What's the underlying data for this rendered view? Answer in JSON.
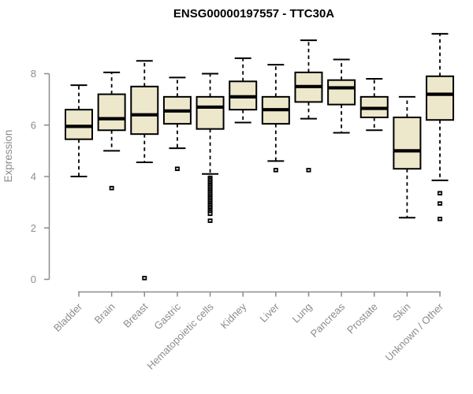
{
  "chart_data": {
    "type": "boxplot",
    "title": "ENSG00000197557 - TTC30A",
    "xlabel": "",
    "ylabel": "Expression",
    "ylim": [
      0,
      9.8
    ],
    "yticks": [
      0,
      2,
      4,
      6,
      8
    ],
    "grid": false,
    "legend": "none",
    "colors": {
      "box_fill": "#EDE7CB",
      "box_stroke": "#000000",
      "median": "#000000",
      "outlier": "#000000",
      "axis": "#8C8C8C",
      "tick_label": "#8C8C8C",
      "title": "#000000",
      "background": "#FFFFFF"
    },
    "categories": [
      "Bladder",
      "Brain",
      "Breast",
      "Gastric",
      "Hematopoietic cells",
      "Kidney",
      "Liver",
      "Lung",
      "Pancreas",
      "Prostate",
      "Skin",
      "Unknown / Other"
    ],
    "boxes": [
      {
        "category": "Bladder",
        "whisker_low": 4.0,
        "q1": 5.45,
        "median": 5.95,
        "q3": 6.6,
        "whisker_high": 7.55,
        "outliers": []
      },
      {
        "category": "Brain",
        "whisker_low": 5.0,
        "q1": 5.8,
        "median": 6.25,
        "q3": 7.2,
        "whisker_high": 8.05,
        "outliers": [
          3.55
        ]
      },
      {
        "category": "Breast",
        "whisker_low": 4.55,
        "q1": 5.65,
        "median": 6.4,
        "q3": 7.5,
        "whisker_high": 8.5,
        "outliers": [
          0.05
        ]
      },
      {
        "category": "Gastric",
        "whisker_low": 5.1,
        "q1": 6.05,
        "median": 6.55,
        "q3": 7.1,
        "whisker_high": 7.85,
        "outliers": [
          4.3
        ]
      },
      {
        "category": "Hematopoietic cells",
        "whisker_low": 4.1,
        "q1": 5.85,
        "median": 6.7,
        "q3": 7.1,
        "whisker_high": 8.0,
        "outliers": [
          3.95,
          3.88,
          3.81,
          3.74,
          3.67,
          3.6,
          3.53,
          3.46,
          3.39,
          3.32,
          3.25,
          3.18,
          3.11,
          3.04,
          2.97,
          2.9,
          2.83,
          2.76,
          2.69,
          2.62,
          2.55,
          2.28
        ]
      },
      {
        "category": "Kidney",
        "whisker_low": 6.1,
        "q1": 6.6,
        "median": 7.1,
        "q3": 7.7,
        "whisker_high": 8.6,
        "outliers": []
      },
      {
        "category": "Liver",
        "whisker_low": 4.6,
        "q1": 6.05,
        "median": 6.6,
        "q3": 7.1,
        "whisker_high": 8.35,
        "outliers": [
          4.25
        ]
      },
      {
        "category": "Lung",
        "whisker_low": 6.25,
        "q1": 6.9,
        "median": 7.5,
        "q3": 8.05,
        "whisker_high": 9.3,
        "outliers": [
          4.25
        ]
      },
      {
        "category": "Pancreas",
        "whisker_low": 5.7,
        "q1": 6.8,
        "median": 7.45,
        "q3": 7.75,
        "whisker_high": 8.55,
        "outliers": []
      },
      {
        "category": "Prostate",
        "whisker_low": 5.8,
        "q1": 6.3,
        "median": 6.65,
        "q3": 7.1,
        "whisker_high": 7.8,
        "outliers": []
      },
      {
        "category": "Skin",
        "whisker_low": 2.4,
        "q1": 4.3,
        "median": 5.0,
        "q3": 6.3,
        "whisker_high": 7.1,
        "outliers": []
      },
      {
        "category": "Unknown / Other",
        "whisker_low": 3.85,
        "q1": 6.2,
        "median": 7.2,
        "q3": 7.9,
        "whisker_high": 9.55,
        "outliers": [
          3.35,
          2.95,
          2.35
        ]
      }
    ]
  }
}
